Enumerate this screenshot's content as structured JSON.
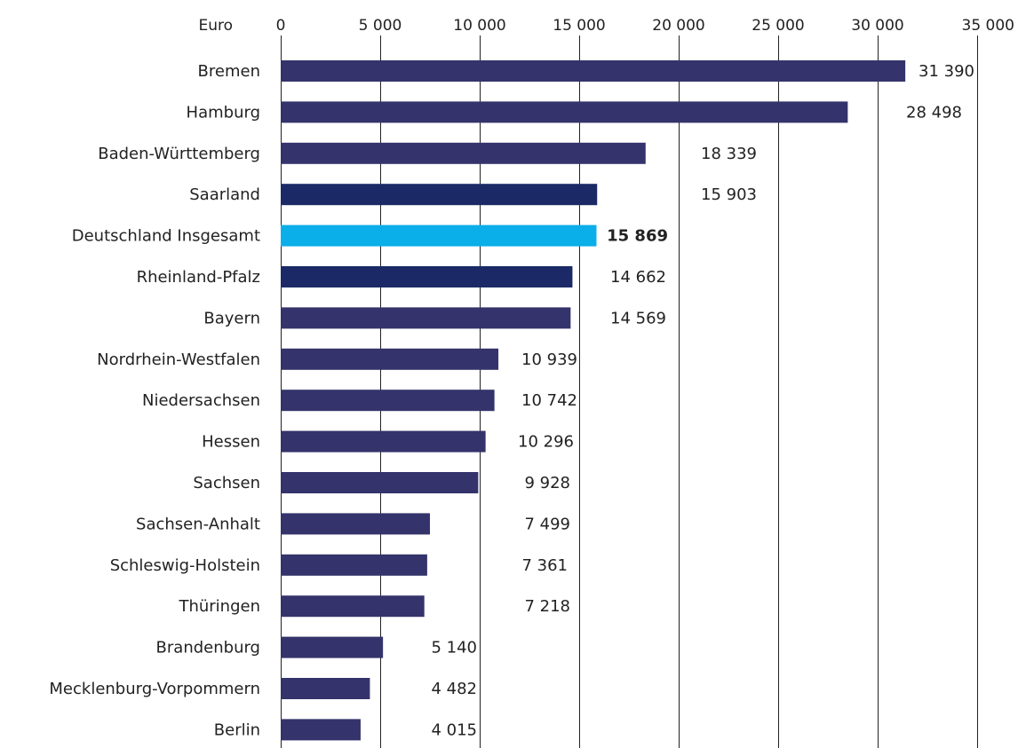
{
  "chart_data": {
    "type": "bar",
    "orientation": "horizontal",
    "title": "",
    "xlabel": "Euro",
    "ylabel": "",
    "xlim": [
      0,
      35000
    ],
    "xticks": [
      0,
      5000,
      10000,
      15000,
      20000,
      25000,
      30000,
      35000
    ],
    "xtick_labels": [
      "0",
      "5 000",
      "10 000",
      "15 000",
      "20 000",
      "25 000",
      "30 000",
      "35 000"
    ],
    "grid": "vertical",
    "legend": "none",
    "categories": [
      "Bremen",
      "Hamburg",
      "Baden-Württemberg",
      "Saarland",
      "Deutschland Insgesamt",
      "Rheinland-Pfalz",
      "Bayern",
      "Nordrhein-Westfalen",
      "Niedersachsen",
      "Hessen",
      "Sachsen",
      "Sachsen-Anhalt",
      "Schleswig-Holstein",
      "Thüringen",
      "Brandenburg",
      "Mecklenburg-Vorpommern",
      "Berlin"
    ],
    "values": [
      31390,
      28498,
      18339,
      15903,
      15869,
      14662,
      14569,
      10939,
      10742,
      10296,
      9928,
      7499,
      7361,
      7218,
      5140,
      4482,
      4015
    ],
    "value_labels": [
      "31 390",
      "28 498",
      "18 339",
      "15 903",
      "15 869",
      "14 662",
      "14 569",
      "10 939",
      "10 742",
      "10 296",
      "9 928",
      "7 499",
      "7 361",
      "7 218",
      "5 140",
      "4 482",
      "4 015"
    ],
    "bar_colors": [
      "#34336b",
      "#34336b",
      "#34336b",
      "#1b2a66",
      "#0aaee8",
      "#1b2a66",
      "#34336b",
      "#34336b",
      "#34336b",
      "#34336b",
      "#34336b",
      "#34336b",
      "#34336b",
      "#34336b",
      "#34336b",
      "#34336b",
      "#34336b"
    ],
    "highlight_category": "Deutschland Insgesamt"
  }
}
